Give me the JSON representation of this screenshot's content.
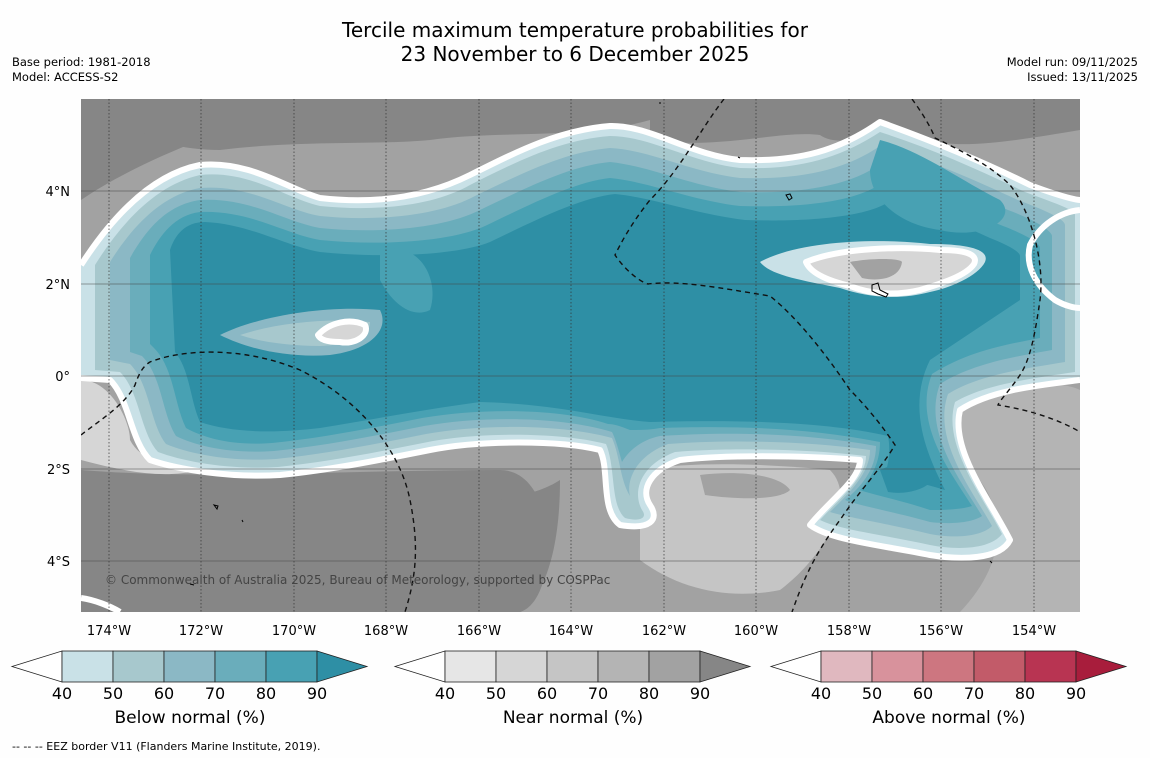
{
  "title": {
    "line1": "Tercile maximum temperature probabilities for",
    "line2": "23 November to 6 December 2025"
  },
  "meta": {
    "base_period": "Base period: 1981-2018",
    "model": "Model: ACCESS-S2",
    "model_run": "Model run: 09/11/2025",
    "issued": "Issued: 13/11/2025"
  },
  "map": {
    "lon_ticks": [
      "174°W",
      "172°W",
      "170°W",
      "168°W",
      "166°W",
      "164°W",
      "162°W",
      "160°W",
      "158°W",
      "156°W",
      "154°W"
    ],
    "lat_ticks": [
      "4°N",
      "2°N",
      "0°",
      "2°S",
      "4°S"
    ],
    "copyright": "© Commonwealth of Australia 2025, Bureau of Meteorology, supported by COSPPac",
    "colors": {
      "below": [
        "#c9e1e7",
        "#a7c8cd",
        "#8bb8c5",
        "#6aadbb",
        "#48a1b3",
        "#2e8fa5"
      ],
      "near": [
        "#e6e6e6",
        "#d6d6d6",
        "#c5c5c5",
        "#b4b4b4",
        "#a2a2a2",
        "#868686"
      ],
      "above": [
        "#e0b8bf",
        "#d8929c",
        "#cd7680",
        "#c25b69",
        "#b83452",
        "#a81d3c"
      ]
    }
  },
  "colorbars": [
    {
      "label": "Below normal (%)",
      "ticks": [
        "40",
        "50",
        "60",
        "70",
        "80",
        "90"
      ]
    },
    {
      "label": "Near normal (%)",
      "ticks": [
        "40",
        "50",
        "60",
        "70",
        "80",
        "90"
      ]
    },
    {
      "label": "Above normal (%)",
      "ticks": [
        "40",
        "50",
        "60",
        "70",
        "80",
        "90"
      ]
    }
  ],
  "footnote": "--  --  -- EEZ border V11 (Flanders Marine Institute, 2019)."
}
